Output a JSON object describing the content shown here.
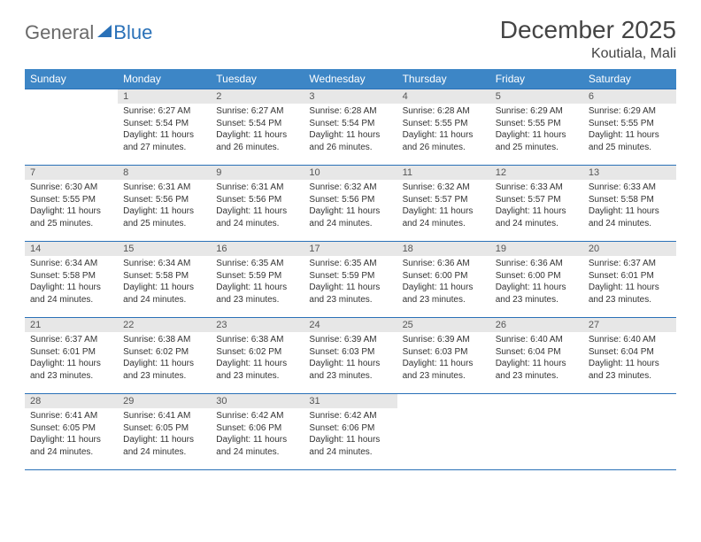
{
  "brand": {
    "part1": "General",
    "part2": "Blue"
  },
  "title": "December 2025",
  "location": "Koutiala, Mali",
  "colors": {
    "header_bg": "#3d86c6",
    "header_text": "#ffffff",
    "border": "#2a71b8",
    "daynum_bg": "#e7e7e7",
    "text": "#333333",
    "brand_gray": "#6a6a6a",
    "brand_blue": "#2a71b8",
    "background": "#ffffff"
  },
  "typography": {
    "title_fontsize": 28,
    "location_fontsize": 16,
    "header_fontsize": 12,
    "daynum_fontsize": 11,
    "body_fontsize": 10
  },
  "weekdays": [
    "Sunday",
    "Monday",
    "Tuesday",
    "Wednesday",
    "Thursday",
    "Friday",
    "Saturday"
  ],
  "weeks": [
    [
      null,
      {
        "n": "1",
        "sr": "Sunrise: 6:27 AM",
        "ss": "Sunset: 5:54 PM",
        "dl": "Daylight: 11 hours and 27 minutes."
      },
      {
        "n": "2",
        "sr": "Sunrise: 6:27 AM",
        "ss": "Sunset: 5:54 PM",
        "dl": "Daylight: 11 hours and 26 minutes."
      },
      {
        "n": "3",
        "sr": "Sunrise: 6:28 AM",
        "ss": "Sunset: 5:54 PM",
        "dl": "Daylight: 11 hours and 26 minutes."
      },
      {
        "n": "4",
        "sr": "Sunrise: 6:28 AM",
        "ss": "Sunset: 5:55 PM",
        "dl": "Daylight: 11 hours and 26 minutes."
      },
      {
        "n": "5",
        "sr": "Sunrise: 6:29 AM",
        "ss": "Sunset: 5:55 PM",
        "dl": "Daylight: 11 hours and 25 minutes."
      },
      {
        "n": "6",
        "sr": "Sunrise: 6:29 AM",
        "ss": "Sunset: 5:55 PM",
        "dl": "Daylight: 11 hours and 25 minutes."
      }
    ],
    [
      {
        "n": "7",
        "sr": "Sunrise: 6:30 AM",
        "ss": "Sunset: 5:55 PM",
        "dl": "Daylight: 11 hours and 25 minutes."
      },
      {
        "n": "8",
        "sr": "Sunrise: 6:31 AM",
        "ss": "Sunset: 5:56 PM",
        "dl": "Daylight: 11 hours and 25 minutes."
      },
      {
        "n": "9",
        "sr": "Sunrise: 6:31 AM",
        "ss": "Sunset: 5:56 PM",
        "dl": "Daylight: 11 hours and 24 minutes."
      },
      {
        "n": "10",
        "sr": "Sunrise: 6:32 AM",
        "ss": "Sunset: 5:56 PM",
        "dl": "Daylight: 11 hours and 24 minutes."
      },
      {
        "n": "11",
        "sr": "Sunrise: 6:32 AM",
        "ss": "Sunset: 5:57 PM",
        "dl": "Daylight: 11 hours and 24 minutes."
      },
      {
        "n": "12",
        "sr": "Sunrise: 6:33 AM",
        "ss": "Sunset: 5:57 PM",
        "dl": "Daylight: 11 hours and 24 minutes."
      },
      {
        "n": "13",
        "sr": "Sunrise: 6:33 AM",
        "ss": "Sunset: 5:58 PM",
        "dl": "Daylight: 11 hours and 24 minutes."
      }
    ],
    [
      {
        "n": "14",
        "sr": "Sunrise: 6:34 AM",
        "ss": "Sunset: 5:58 PM",
        "dl": "Daylight: 11 hours and 24 minutes."
      },
      {
        "n": "15",
        "sr": "Sunrise: 6:34 AM",
        "ss": "Sunset: 5:58 PM",
        "dl": "Daylight: 11 hours and 24 minutes."
      },
      {
        "n": "16",
        "sr": "Sunrise: 6:35 AM",
        "ss": "Sunset: 5:59 PM",
        "dl": "Daylight: 11 hours and 23 minutes."
      },
      {
        "n": "17",
        "sr": "Sunrise: 6:35 AM",
        "ss": "Sunset: 5:59 PM",
        "dl": "Daylight: 11 hours and 23 minutes."
      },
      {
        "n": "18",
        "sr": "Sunrise: 6:36 AM",
        "ss": "Sunset: 6:00 PM",
        "dl": "Daylight: 11 hours and 23 minutes."
      },
      {
        "n": "19",
        "sr": "Sunrise: 6:36 AM",
        "ss": "Sunset: 6:00 PM",
        "dl": "Daylight: 11 hours and 23 minutes."
      },
      {
        "n": "20",
        "sr": "Sunrise: 6:37 AM",
        "ss": "Sunset: 6:01 PM",
        "dl": "Daylight: 11 hours and 23 minutes."
      }
    ],
    [
      {
        "n": "21",
        "sr": "Sunrise: 6:37 AM",
        "ss": "Sunset: 6:01 PM",
        "dl": "Daylight: 11 hours and 23 minutes."
      },
      {
        "n": "22",
        "sr": "Sunrise: 6:38 AM",
        "ss": "Sunset: 6:02 PM",
        "dl": "Daylight: 11 hours and 23 minutes."
      },
      {
        "n": "23",
        "sr": "Sunrise: 6:38 AM",
        "ss": "Sunset: 6:02 PM",
        "dl": "Daylight: 11 hours and 23 minutes."
      },
      {
        "n": "24",
        "sr": "Sunrise: 6:39 AM",
        "ss": "Sunset: 6:03 PM",
        "dl": "Daylight: 11 hours and 23 minutes."
      },
      {
        "n": "25",
        "sr": "Sunrise: 6:39 AM",
        "ss": "Sunset: 6:03 PM",
        "dl": "Daylight: 11 hours and 23 minutes."
      },
      {
        "n": "26",
        "sr": "Sunrise: 6:40 AM",
        "ss": "Sunset: 6:04 PM",
        "dl": "Daylight: 11 hours and 23 minutes."
      },
      {
        "n": "27",
        "sr": "Sunrise: 6:40 AM",
        "ss": "Sunset: 6:04 PM",
        "dl": "Daylight: 11 hours and 23 minutes."
      }
    ],
    [
      {
        "n": "28",
        "sr": "Sunrise: 6:41 AM",
        "ss": "Sunset: 6:05 PM",
        "dl": "Daylight: 11 hours and 24 minutes."
      },
      {
        "n": "29",
        "sr": "Sunrise: 6:41 AM",
        "ss": "Sunset: 6:05 PM",
        "dl": "Daylight: 11 hours and 24 minutes."
      },
      {
        "n": "30",
        "sr": "Sunrise: 6:42 AM",
        "ss": "Sunset: 6:06 PM",
        "dl": "Daylight: 11 hours and 24 minutes."
      },
      {
        "n": "31",
        "sr": "Sunrise: 6:42 AM",
        "ss": "Sunset: 6:06 PM",
        "dl": "Daylight: 11 hours and 24 minutes."
      },
      null,
      null,
      null
    ]
  ]
}
